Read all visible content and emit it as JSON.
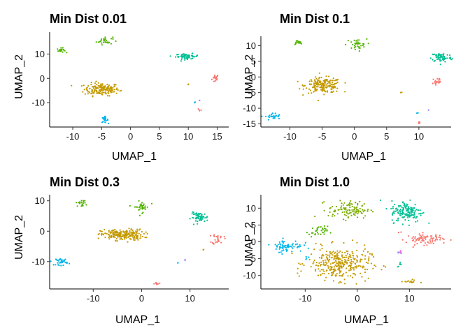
{
  "chart_data": [
    {
      "type": "scatter",
      "title": "Min Dist 0.01",
      "xlabel": "UMAP_1",
      "ylabel": "UMAP_2",
      "xlim": [
        -14,
        17
      ],
      "ylim": [
        -20,
        19
      ],
      "xticks": [
        -10,
        -5,
        0,
        5,
        10,
        15
      ],
      "yticks": [
        -10,
        0,
        10
      ],
      "grid": false,
      "legend": "none",
      "clusters": [
        {
          "color": "#F8766D",
          "cx": 14.7,
          "cy": 0.0,
          "sx": 0.3,
          "sy": 0.9,
          "n": 18
        },
        {
          "color": "#F8766D",
          "cx": 12.0,
          "cy": -12.5,
          "sx": 0.2,
          "sy": 0.3,
          "n": 4
        },
        {
          "color": "#C49A00",
          "cx": -5.0,
          "cy": -4.5,
          "sx": 1.5,
          "sy": 1.3,
          "n": 170
        },
        {
          "color": "#C49A00",
          "cx": 10.0,
          "cy": -2.5,
          "sx": 0.05,
          "sy": 0.1,
          "n": 2
        },
        {
          "color": "#53B400",
          "cx": -12.0,
          "cy": 11.5,
          "sx": 0.35,
          "sy": 0.45,
          "n": 20
        },
        {
          "color": "#53B400",
          "cx": -4.5,
          "cy": 15.5,
          "sx": 0.7,
          "sy": 0.8,
          "n": 30
        },
        {
          "color": "#00C094",
          "cx": 9.8,
          "cy": 9.0,
          "sx": 1.0,
          "sy": 0.55,
          "n": 60
        },
        {
          "color": "#00B6EB",
          "cx": -4.5,
          "cy": -17.0,
          "sx": 0.3,
          "sy": 0.6,
          "n": 25
        },
        {
          "color": "#00B6EB",
          "cx": 11.2,
          "cy": -9.8,
          "sx": 0.05,
          "sy": 0.1,
          "n": 2
        },
        {
          "color": "#A58AFF",
          "cx": 12.0,
          "cy": -9.0,
          "sx": 0.05,
          "sy": 0.1,
          "n": 2
        }
      ]
    },
    {
      "type": "scatter",
      "title": "Min Dist 0.1",
      "xlabel": "UMAP_1",
      "ylabel": "UMAP_2",
      "xlim": [
        -14.5,
        15
      ],
      "ylim": [
        -16,
        13
      ],
      "xticks": [
        -10,
        -5,
        0,
        5,
        10
      ],
      "yticks": [
        -15,
        -10,
        -5,
        0,
        5,
        10
      ],
      "grid": false,
      "legend": "none",
      "clusters": [
        {
          "color": "#F8766D",
          "cx": 12.8,
          "cy": -1.5,
          "sx": 0.4,
          "sy": 0.9,
          "n": 20
        },
        {
          "color": "#F8766D",
          "cx": 10.0,
          "cy": -14.5,
          "sx": 0.15,
          "sy": 0.3,
          "n": 4
        },
        {
          "color": "#C49A00",
          "cx": -4.8,
          "cy": -2.7,
          "sx": 1.4,
          "sy": 1.2,
          "n": 180
        },
        {
          "color": "#C49A00",
          "cx": 7.2,
          "cy": -5.0,
          "sx": 0.05,
          "sy": 0.1,
          "n": 2
        },
        {
          "color": "#53B400",
          "cx": -8.8,
          "cy": 11.0,
          "sx": 0.35,
          "sy": 0.35,
          "n": 18
        },
        {
          "color": "#53B400",
          "cx": 0.3,
          "cy": 10.3,
          "sx": 0.8,
          "sy": 0.9,
          "n": 35
        },
        {
          "color": "#00C094",
          "cx": 13.5,
          "cy": 6.3,
          "sx": 0.8,
          "sy": 0.8,
          "n": 70
        },
        {
          "color": "#00B6EB",
          "cx": -12.6,
          "cy": -12.7,
          "sx": 0.6,
          "sy": 0.6,
          "n": 30
        },
        {
          "color": "#00B6EB",
          "cx": 9.8,
          "cy": -11.5,
          "sx": 0.05,
          "sy": 0.1,
          "n": 2
        },
        {
          "color": "#A58AFF",
          "cx": 11.5,
          "cy": -10.5,
          "sx": 0.05,
          "sy": 0.1,
          "n": 2
        }
      ]
    },
    {
      "type": "scatter",
      "title": "Min Dist 0.3",
      "xlabel": "UMAP_1",
      "ylabel": "UMAP_2",
      "xlim": [
        -19,
        18
      ],
      "ylim": [
        -19,
        12
      ],
      "xticks": [
        -10,
        0,
        10
      ],
      "yticks": [
        -10,
        0,
        10
      ],
      "grid": false,
      "legend": "none",
      "clusters": [
        {
          "color": "#F8766D",
          "cx": 15.8,
          "cy": -2.5,
          "sx": 0.6,
          "sy": 0.9,
          "n": 25
        },
        {
          "color": "#F8766D",
          "cx": 3.0,
          "cy": -17.0,
          "sx": 0.4,
          "sy": 0.25,
          "n": 8
        },
        {
          "color": "#C49A00",
          "cx": -4.0,
          "cy": -1.2,
          "sx": 2.2,
          "sy": 0.9,
          "n": 220
        },
        {
          "color": "#C49A00",
          "cx": 12.8,
          "cy": -6.0,
          "sx": 0.05,
          "sy": 0.1,
          "n": 2
        },
        {
          "color": "#53B400",
          "cx": -12.5,
          "cy": 9.2,
          "sx": 0.5,
          "sy": 0.5,
          "n": 20
        },
        {
          "color": "#53B400",
          "cx": 0.0,
          "cy": 8.0,
          "sx": 0.8,
          "sy": 0.9,
          "n": 35
        },
        {
          "color": "#00C094",
          "cx": 12.0,
          "cy": 4.5,
          "sx": 0.9,
          "sy": 0.8,
          "n": 60
        },
        {
          "color": "#00B6EB",
          "cx": -16.5,
          "cy": -10.0,
          "sx": 0.6,
          "sy": 0.6,
          "n": 35
        },
        {
          "color": "#00B6EB",
          "cx": 7.5,
          "cy": -10.5,
          "sx": 0.05,
          "sy": 0.1,
          "n": 2
        },
        {
          "color": "#A58AFF",
          "cx": 9.0,
          "cy": -9.5,
          "sx": 0.05,
          "sy": 0.1,
          "n": 2
        }
      ]
    },
    {
      "type": "scatter",
      "title": "Min Dist 1.0",
      "xlabel": "UMAP_1",
      "ylabel": "UMAP_2",
      "xlim": [
        -18.5,
        18
      ],
      "ylim": [
        -14,
        14
      ],
      "xticks": [
        -10,
        0,
        10
      ],
      "yticks": [
        -10,
        -5,
        0,
        5,
        10
      ],
      "grid": false,
      "legend": "none",
      "clusters": [
        {
          "color": "#F8766D",
          "cx": 13.0,
          "cy": 0.8,
          "sx": 1.8,
          "sy": 0.8,
          "n": 80
        },
        {
          "color": "#F8766D",
          "cx": 8.0,
          "cy": 2.8,
          "sx": 0.2,
          "sy": 0.2,
          "n": 3
        },
        {
          "color": "#C49A00",
          "cx": -3.5,
          "cy": -6.5,
          "sx": 3.0,
          "sy": 2.4,
          "n": 320
        },
        {
          "color": "#C49A00",
          "cx": 10.0,
          "cy": -11.8,
          "sx": 0.8,
          "sy": 0.3,
          "n": 15
        },
        {
          "color": "#53B400",
          "cx": -7.5,
          "cy": 3.0,
          "sx": 0.9,
          "sy": 0.8,
          "n": 35
        },
        {
          "color": "#7CAE00",
          "cx": -1.5,
          "cy": 9.5,
          "sx": 2.0,
          "sy": 1.3,
          "n": 110
        },
        {
          "color": "#00C094",
          "cx": 9.5,
          "cy": 9.0,
          "sx": 1.5,
          "sy": 1.6,
          "n": 150
        },
        {
          "color": "#00C094",
          "cx": 8.2,
          "cy": -6.8,
          "sx": 0.25,
          "sy": 0.4,
          "n": 6
        },
        {
          "color": "#00B6EB",
          "cx": -13.5,
          "cy": -1.2,
          "sx": 1.5,
          "sy": 0.9,
          "n": 70
        },
        {
          "color": "#00B6EB",
          "cx": -9.5,
          "cy": -5.0,
          "sx": 0.3,
          "sy": 0.3,
          "n": 4
        },
        {
          "color": "#A58AFF",
          "cx": 8.0,
          "cy": -3.2,
          "sx": 0.3,
          "sy": 0.2,
          "n": 5
        },
        {
          "color": "#FB61D7",
          "cx": 8.3,
          "cy": -2.8,
          "sx": 0.2,
          "sy": 0.15,
          "n": 2
        }
      ]
    }
  ]
}
